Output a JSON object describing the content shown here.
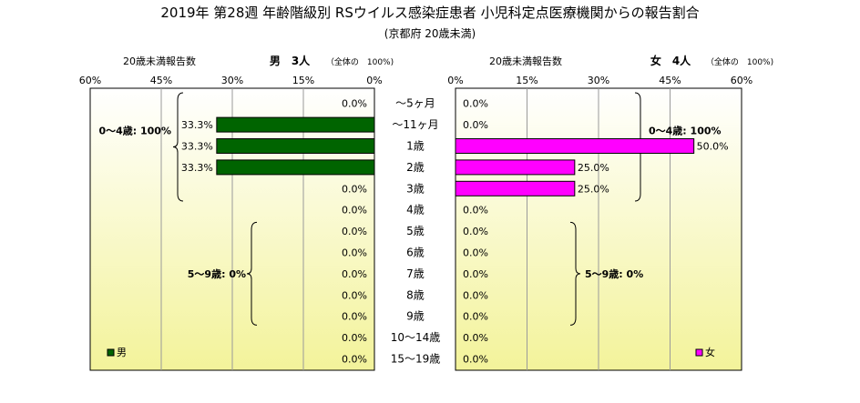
{
  "title": "2019年 第28週 年齢階級別 RSウイルス感染症患者 小児科定点医療機関からの報告割合",
  "subtitle": "(京都府 20歳未満)",
  "colors": {
    "male": "#006400",
    "female": "#ff00ff",
    "bg_top": "#ffffff",
    "bg_bottom": "#f3f39a",
    "frame": "#000000"
  },
  "chart_data": {
    "type": "bar",
    "orientation": "horizontal-pyramid",
    "categories": [
      "～5ヶ月",
      "～11ヶ月",
      "1歳",
      "2歳",
      "3歳",
      "4歳",
      "5歳",
      "6歳",
      "7歳",
      "8歳",
      "9歳",
      "10～14歳",
      "15～19歳"
    ],
    "xlim": [
      0,
      60
    ],
    "ticks": [
      60,
      45,
      30,
      15,
      0
    ],
    "tick_labels_left": [
      "60%",
      "45%",
      "30%",
      "15%",
      "0%"
    ],
    "tick_labels_right": [
      "0%",
      "15%",
      "30%",
      "45%",
      "60%"
    ],
    "grid": true,
    "series": [
      {
        "name": "男",
        "side": "left",
        "header_left": "20歳未満報告数",
        "header_main": "男　3人",
        "header_note": "（全体の　100%)",
        "values": [
          0,
          33.3,
          33.3,
          33.3,
          0,
          0,
          0,
          0,
          0,
          0,
          0,
          0,
          0
        ],
        "labels": [
          "0.0%",
          "33.3%",
          "33.3%",
          "33.3%",
          "0.0%",
          "0.0%",
          "0.0%",
          "0.0%",
          "0.0%",
          "0.0%",
          "0.0%",
          "0.0%",
          "0.0%"
        ],
        "group_labels": [
          "0～4歳: 100%",
          "5～9歳: 0%"
        ]
      },
      {
        "name": "女",
        "side": "right",
        "header_left": "20歳未満報告数",
        "header_main": "女　4人",
        "header_note": "（全体の　100%)",
        "values": [
          0,
          0,
          50,
          25,
          25,
          0,
          0,
          0,
          0,
          0,
          0,
          0,
          0
        ],
        "labels": [
          "0.0%",
          "0.0%",
          "50.0%",
          "25.0%",
          "25.0%",
          "0.0%",
          "0.0%",
          "0.0%",
          "0.0%",
          "0.0%",
          "0.0%",
          "0.0%",
          "0.0%"
        ],
        "group_labels": [
          "0～4歳: 100%",
          "5～9歳: 0%"
        ]
      }
    ],
    "legend": {
      "left": "男",
      "right": "女"
    }
  }
}
